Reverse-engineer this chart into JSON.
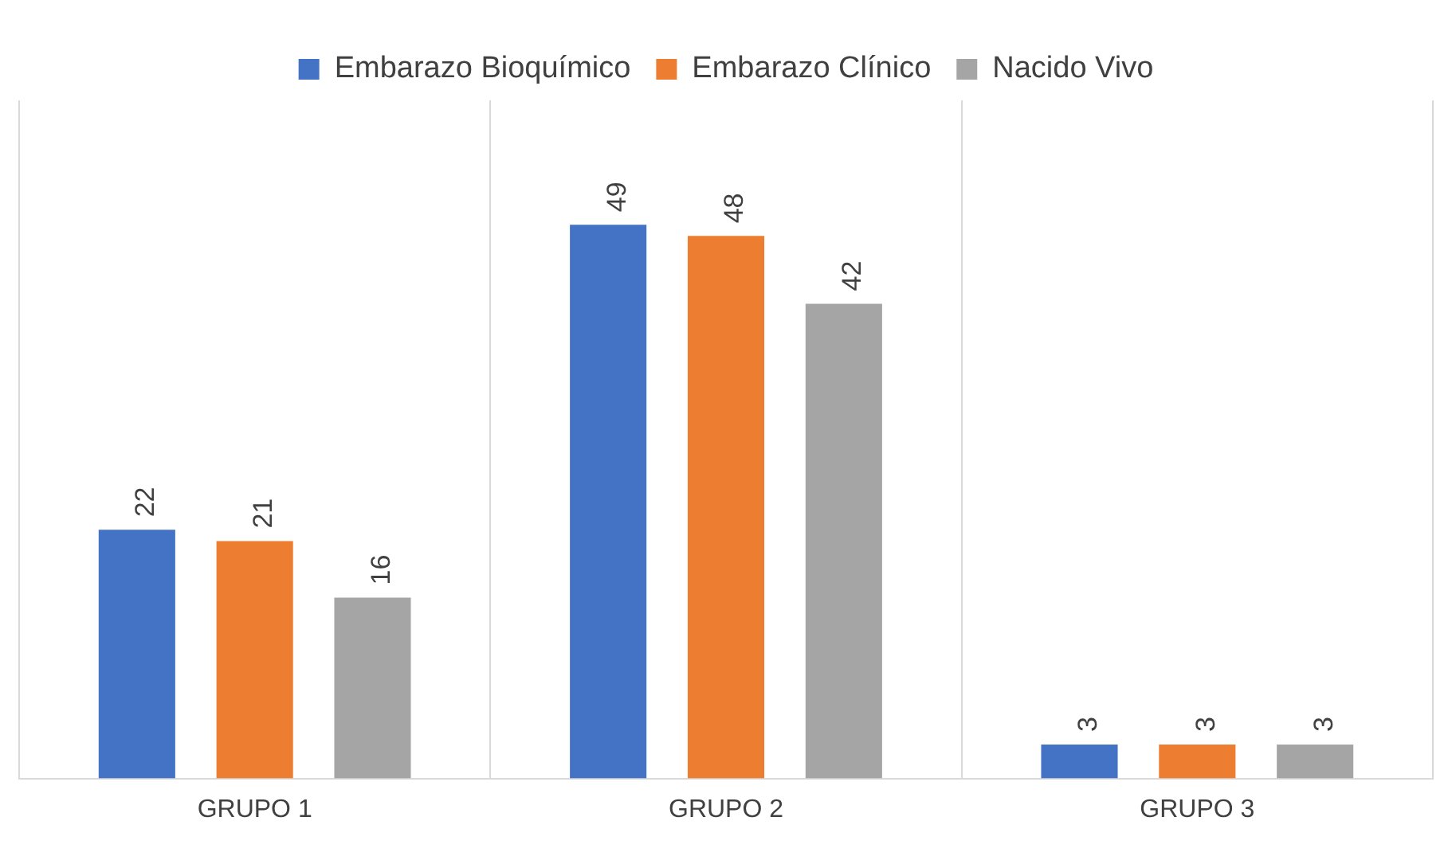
{
  "chart_data": {
    "type": "bar",
    "categories": [
      "GRUPO 1",
      "GRUPO 2",
      "GRUPO 3"
    ],
    "series": [
      {
        "name": "Embarazo Bioquímico",
        "color": "#4472c4",
        "values": [
          22,
          49,
          3
        ]
      },
      {
        "name": "Embarazo Clínico",
        "color": "#ed7d31",
        "values": [
          21,
          48,
          3
        ]
      },
      {
        "name": "Nacido Vivo",
        "color": "#a5a5a5",
        "values": [
          16,
          42,
          3
        ]
      }
    ],
    "data_labels": true,
    "grid": "x",
    "legend": "top"
  }
}
